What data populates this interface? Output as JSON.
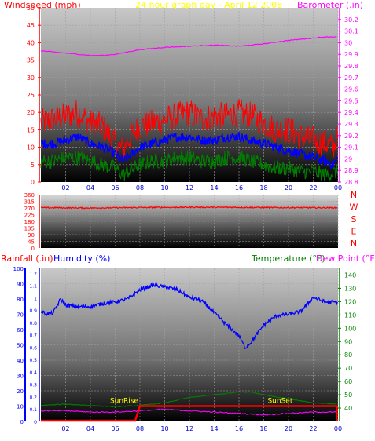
{
  "header": {
    "left": "Windspeed (mph)",
    "center": "24 hour graph day - April 12 2008",
    "right": "Barometer (.in)"
  },
  "bottom_header": {
    "rainfall": "Rainfall (.in)",
    "humidity": "Humidity (%)",
    "temperature": "Temperature (°F)",
    "dewpoint": "Dew Point (°F)"
  },
  "colors": {
    "wind_gust": "#ff0000",
    "wind_avg": "#0000ff",
    "wind_low": "#008000",
    "barometer": "#ff00ff",
    "direction": "#ff0000",
    "humidity": "#0000ff",
    "temperature": "#008000",
    "dewpoint": "#ff00ff",
    "sun": "#ff0000",
    "sun_label": "#ffff00",
    "rain_axis": "#0000ff"
  },
  "chart_data": [
    {
      "type": "line",
      "name": "wind",
      "x_ticks": [
        "02",
        "04",
        "06",
        "08",
        "10",
        "12",
        "14",
        "16",
        "18",
        "20",
        "22",
        "00"
      ],
      "x_hours": [
        0,
        24
      ],
      "ylim": [
        0,
        50
      ],
      "y_ticks": [
        "0",
        "5",
        "10",
        "15",
        "20",
        "25",
        "30",
        "35",
        "40",
        "45",
        "50"
      ],
      "y2lim": [
        28.8,
        30.3
      ],
      "y2_ticks": [
        "28.8",
        "28.9",
        "29",
        "29.1",
        "29.2",
        "29.3",
        "29.4",
        "29.5",
        "29.6",
        "29.7",
        "29.8",
        "29.9",
        "30",
        "30.1",
        "30.2"
      ],
      "series": [
        {
          "key": "gust",
          "points": [
            [
              0,
              17
            ],
            [
              1,
              18
            ],
            [
              2,
              19
            ],
            [
              3,
              20
            ],
            [
              4,
              17
            ],
            [
              5,
              16
            ],
            [
              6,
              11
            ],
            [
              6.7,
              9
            ],
            [
              7,
              12
            ],
            [
              8,
              16
            ],
            [
              9,
              17
            ],
            [
              10,
              18
            ],
            [
              11,
              19
            ],
            [
              12,
              20
            ],
            [
              13,
              18
            ],
            [
              14,
              19
            ],
            [
              15,
              19
            ],
            [
              16,
              20
            ],
            [
              17,
              19
            ],
            [
              18,
              17
            ],
            [
              19,
              15
            ],
            [
              20,
              15
            ],
            [
              21,
              13
            ],
            [
              22,
              12
            ],
            [
              23,
              11
            ],
            [
              23.6,
              10
            ],
            [
              24,
              13
            ]
          ]
        },
        {
          "key": "avg",
          "points": [
            [
              0,
              11
            ],
            [
              1,
              11
            ],
            [
              2,
              12
            ],
            [
              3,
              13
            ],
            [
              4,
              11
            ],
            [
              5,
              10
            ],
            [
              6,
              8
            ],
            [
              6.7,
              6
            ],
            [
              7,
              7
            ],
            [
              8,
              10
            ],
            [
              9,
              11
            ],
            [
              10,
              12
            ],
            [
              11,
              13
            ],
            [
              12,
              13
            ],
            [
              13,
              12
            ],
            [
              14,
              12
            ],
            [
              15,
              13
            ],
            [
              16,
              13
            ],
            [
              17,
              12
            ],
            [
              18,
              11
            ],
            [
              19,
              10
            ],
            [
              20,
              9
            ],
            [
              21,
              8
            ],
            [
              22,
              7
            ],
            [
              23,
              6
            ],
            [
              23.6,
              5
            ],
            [
              24,
              7
            ]
          ]
        },
        {
          "key": "low",
          "points": [
            [
              0,
              6
            ],
            [
              1,
              6
            ],
            [
              2,
              7
            ],
            [
              3,
              7
            ],
            [
              4,
              6
            ],
            [
              5,
              5
            ],
            [
              6,
              4
            ],
            [
              6.7,
              2
            ],
            [
              7,
              3
            ],
            [
              8,
              5
            ],
            [
              9,
              6
            ],
            [
              10,
              6
            ],
            [
              11,
              7
            ],
            [
              12,
              7
            ],
            [
              13,
              6
            ],
            [
              14,
              6
            ],
            [
              15,
              7
            ],
            [
              16,
              7
            ],
            [
              17,
              6
            ],
            [
              18,
              5
            ],
            [
              19,
              4
            ],
            [
              20,
              4
            ],
            [
              21,
              3
            ],
            [
              22,
              3
            ],
            [
              23,
              2
            ],
            [
              24,
              3
            ]
          ]
        },
        {
          "key": "barometer",
          "points": [
            [
              0,
              29.93
            ],
            [
              2,
              29.91
            ],
            [
              4,
              29.89
            ],
            [
              5,
              29.89
            ],
            [
              6,
              29.9
            ],
            [
              8,
              29.94
            ],
            [
              10,
              29.96
            ],
            [
              12,
              29.97
            ],
            [
              14,
              29.98
            ],
            [
              16,
              29.97
            ],
            [
              18,
              29.99
            ],
            [
              20,
              30.02
            ],
            [
              22,
              30.04
            ],
            [
              23,
              30.05
            ],
            [
              24,
              30.05
            ]
          ]
        }
      ]
    },
    {
      "type": "line",
      "name": "direction",
      "x_hours": [
        0,
        24
      ],
      "ylim": [
        0,
        360
      ],
      "y_ticks": [
        "0",
        "45",
        "90",
        "135",
        "180",
        "225",
        "270",
        "315",
        "360"
      ],
      "compass": [
        "N",
        "W",
        "S",
        "E",
        "N"
      ],
      "series": [
        {
          "key": "direction",
          "points": [
            [
              0,
              272
            ],
            [
              4,
              270
            ],
            [
              8,
              273
            ],
            [
              12,
              275
            ],
            [
              16,
              274
            ],
            [
              20,
              272
            ],
            [
              24,
              271
            ]
          ]
        }
      ]
    },
    {
      "type": "line",
      "name": "humidity_temp",
      "x_ticks": [
        "02",
        "04",
        "06",
        "08",
        "10",
        "12",
        "14",
        "16",
        "18",
        "20",
        "22",
        "00"
      ],
      "x_hours": [
        0,
        24
      ],
      "ylim": [
        0,
        100
      ],
      "y_ticks": [
        "0",
        "10",
        "20",
        "30",
        "40",
        "50",
        "60",
        "70",
        "80",
        "90",
        "100"
      ],
      "rain_ticks": [
        "0",
        "0.1",
        "0.2",
        "0.3",
        "0.4",
        "0.5",
        "0.6",
        "0.7",
        "0.8",
        "0.9",
        "1",
        "1.1",
        "1.2"
      ],
      "y2lim": [
        30,
        145
      ],
      "y2_ticks": [
        "40",
        "50",
        "60",
        "70",
        "80",
        "90",
        "100",
        "110",
        "120",
        "130",
        "140"
      ],
      "sunrise_label": "SunRise",
      "sunset_label": "SunSet",
      "sunrise_hour": 8.0,
      "sunset_hour": 23.9,
      "series": [
        {
          "key": "humidity",
          "points": [
            [
              0,
              72
            ],
            [
              0.5,
              70
            ],
            [
              1,
              71
            ],
            [
              1.6,
              80
            ],
            [
              2,
              76
            ],
            [
              3,
              75
            ],
            [
              4,
              75
            ],
            [
              5,
              77
            ],
            [
              6,
              78
            ],
            [
              7,
              80
            ],
            [
              8,
              86
            ],
            [
              9,
              89
            ],
            [
              10,
              88
            ],
            [
              11,
              86
            ],
            [
              12,
              81
            ],
            [
              13,
              79
            ],
            [
              14,
              71
            ],
            [
              15,
              63
            ],
            [
              16,
              56
            ],
            [
              16.5,
              48
            ],
            [
              17,
              52
            ],
            [
              18,
              63
            ],
            [
              19,
              69
            ],
            [
              20,
              70
            ],
            [
              21,
              72
            ],
            [
              22,
              81
            ],
            [
              23,
              78
            ],
            [
              24,
              78
            ]
          ]
        },
        {
          "key": "temperature",
          "points": [
            [
              0,
              42
            ],
            [
              2,
              43
            ],
            [
              4,
              42
            ],
            [
              6,
              41
            ],
            [
              8,
              42
            ],
            [
              10,
              44
            ],
            [
              12,
              48
            ],
            [
              14,
              50
            ],
            [
              16,
              52
            ],
            [
              17,
              52
            ],
            [
              18,
              50
            ],
            [
              20,
              47
            ],
            [
              22,
              44
            ],
            [
              24,
              43
            ]
          ]
        },
        {
          "key": "dewpoint",
          "points": [
            [
              0,
              38
            ],
            [
              2,
              38
            ],
            [
              4,
              37
            ],
            [
              6,
              37
            ],
            [
              8,
              38
            ],
            [
              10,
              39
            ],
            [
              12,
              38
            ],
            [
              14,
              37
            ],
            [
              16,
              36
            ],
            [
              18,
              35
            ],
            [
              20,
              36
            ],
            [
              22,
              37
            ],
            [
              24,
              37
            ]
          ]
        }
      ]
    }
  ]
}
